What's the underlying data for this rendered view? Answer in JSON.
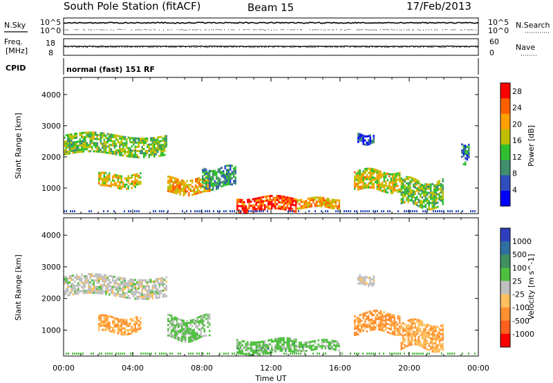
{
  "header": {
    "station": "South Pole Station (fitACF)",
    "beam": "Beam 15",
    "date": "17/Feb/2013"
  },
  "top_panels": {
    "nsky_label": "N.Sky",
    "nsearch_label": "N.Search",
    "noise_ticks_left": [
      "10^5",
      "10^0"
    ],
    "noise_ticks_right": [
      "10^5",
      "10^0"
    ],
    "freq_label_1": "Freq.",
    "freq_label_2": "[MHz]",
    "freq_ticks": [
      "18",
      "8"
    ],
    "nave_label": "Nave",
    "nave_ticks": [
      "60",
      "0"
    ],
    "cpid_label": "CPID",
    "cpid_value": "normal (fast) 151 RF"
  },
  "x_axis": {
    "label": "Time UT",
    "ticks": [
      "00:00",
      "04:00",
      "08:00",
      "12:00",
      "16:00",
      "20:00",
      "00:00"
    ],
    "range_hours": [
      0,
      24
    ]
  },
  "chart_data": [
    {
      "type": "heatmap",
      "name": "power",
      "ylabel": "Slant Range [km]",
      "ylim": [
        180,
        4550
      ],
      "yticks": [
        "1000",
        "2000",
        "3000",
        "4000"
      ],
      "colorbar": {
        "label": "Power [dB]",
        "ticks": [
          "4",
          "8",
          "12",
          "16",
          "20",
          "24",
          "28"
        ],
        "range": [
          0,
          30
        ],
        "colors": [
          "#0000ff",
          "#2f4fbf",
          "#3f8f6f",
          "#2fbf2f",
          "#bfbf00",
          "#ff9f00",
          "#ff5f00",
          "#ff0000"
        ]
      },
      "features": [
        {
          "t": [
            0.0,
            6.0
          ],
          "r": [
            2050,
            2700
          ],
          "level": 14
        },
        {
          "t": [
            2.0,
            4.5
          ],
          "r": [
            1000,
            1400
          ],
          "level": 18
        },
        {
          "t": [
            6.0,
            8.5
          ],
          "r": [
            800,
            1300
          ],
          "level": 20
        },
        {
          "t": [
            8.0,
            10.0
          ],
          "r": [
            1000,
            1600
          ],
          "level": 10
        },
        {
          "t": [
            10.0,
            13.5
          ],
          "r": [
            250,
            700
          ],
          "level": 26
        },
        {
          "t": [
            13.5,
            16.0
          ],
          "r": [
            350,
            650
          ],
          "level": 20
        },
        {
          "t": [
            16.8,
            19.5
          ],
          "r": [
            900,
            1500
          ],
          "level": 18
        },
        {
          "t": [
            19.5,
            22.0
          ],
          "r": [
            400,
            1200
          ],
          "level": 14
        },
        {
          "t": [
            17.0,
            18.0
          ],
          "r": [
            2400,
            2700
          ],
          "level": 6
        },
        {
          "t": [
            23.0,
            23.5
          ],
          "r": [
            1800,
            2400
          ],
          "level": 8
        }
      ]
    },
    {
      "type": "heatmap",
      "name": "velocity",
      "ylabel": "Slant Range [km]",
      "ylim": [
        180,
        4550
      ],
      "yticks": [
        "1000",
        "2000",
        "3000",
        "4000"
      ],
      "colorbar": {
        "label": "Velocity [m s^-1]",
        "ticks": [
          "1000",
          "500",
          "100",
          "25",
          "-25",
          "-100",
          "-500",
          "-1000"
        ],
        "range": [
          -1000,
          1000
        ],
        "colors": [
          "#2f3fbf",
          "#2f6f9f",
          "#3f8f5f",
          "#4fbf3f",
          "#bfbfbf",
          "#ffbf5f",
          "#ff8f2f",
          "#ff5f1f",
          "#ff0000"
        ]
      },
      "features": [
        {
          "t": [
            0.0,
            6.0
          ],
          "r": [
            2050,
            2700
          ],
          "level": 0
        },
        {
          "t": [
            2.0,
            4.5
          ],
          "r": [
            900,
            1400
          ],
          "level": -300
        },
        {
          "t": [
            6.0,
            8.5
          ],
          "r": [
            700,
            1400
          ],
          "level": 150
        },
        {
          "t": [
            10.0,
            13.5
          ],
          "r": [
            250,
            700
          ],
          "level": 200
        },
        {
          "t": [
            13.5,
            16.0
          ],
          "r": [
            350,
            650
          ],
          "level": 200
        },
        {
          "t": [
            16.8,
            19.5
          ],
          "r": [
            900,
            1500
          ],
          "level": -400
        },
        {
          "t": [
            19.5,
            22.0
          ],
          "r": [
            400,
            1200
          ],
          "level": -300
        },
        {
          "t": [
            17.0,
            18.0
          ],
          "r": [
            2400,
            2700
          ],
          "level": -50
        }
      ]
    }
  ]
}
